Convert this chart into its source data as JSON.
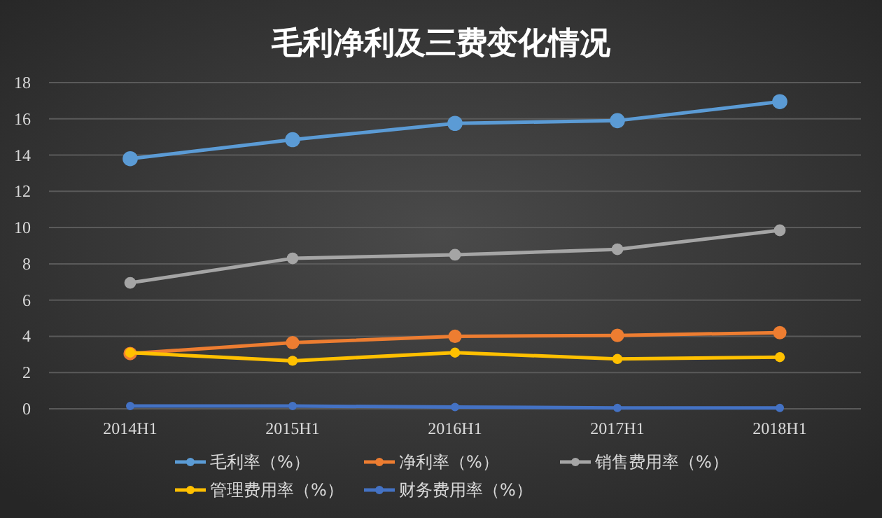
{
  "chart_data": {
    "type": "line",
    "title": "毛利净利及三费变化情况",
    "categories": [
      "2014H1",
      "2015H1",
      "2016H1",
      "2017H1",
      "2018H1"
    ],
    "ylim": [
      0,
      18
    ],
    "yticks": [
      0,
      2,
      4,
      6,
      8,
      10,
      12,
      14,
      16,
      18
    ],
    "grid": "y",
    "legend": "bottom",
    "marker": "circle",
    "line_style": "solid",
    "series": [
      {
        "name": "毛利率（%）",
        "color": "#5b9bd5",
        "values": [
          13.8,
          14.85,
          15.75,
          15.9,
          16.95
        ]
      },
      {
        "name": "净利率（%）",
        "color": "#ed7d31",
        "values": [
          3.05,
          3.65,
          4.0,
          4.05,
          4.2
        ]
      },
      {
        "name": "销售费用率（%）",
        "color": "#a5a5a5",
        "values": [
          6.95,
          8.3,
          8.5,
          8.8,
          9.85
        ]
      },
      {
        "name": "管理费用率（%）",
        "color": "#ffc000",
        "values": [
          3.1,
          2.65,
          3.1,
          2.75,
          2.85
        ]
      },
      {
        "name": "财务费用率（%）",
        "color": "#4472c4",
        "values": [
          0.15,
          0.15,
          0.1,
          0.05,
          0.05
        ]
      }
    ]
  }
}
